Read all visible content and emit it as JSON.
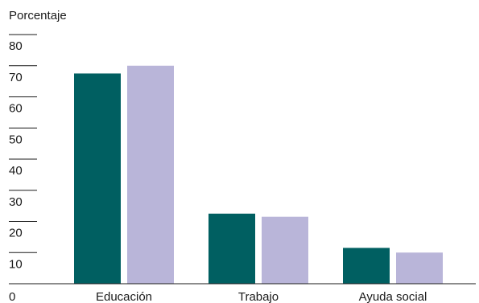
{
  "chart_data": {
    "type": "bar",
    "ylabel": "Porcentaje",
    "categories": [
      "Educación",
      "Trabajo",
      "Ayuda social"
    ],
    "series": [
      {
        "color": "#005f61",
        "values": [
          67.5,
          22.5,
          11.5
        ]
      },
      {
        "color": "#b9b5d9",
        "values": [
          70.0,
          21.5,
          10.0
        ]
      }
    ],
    "ylim": [
      0,
      80
    ],
    "yticks": [
      0,
      10,
      20,
      30,
      40,
      50,
      60,
      70,
      80
    ],
    "grid": false
  }
}
